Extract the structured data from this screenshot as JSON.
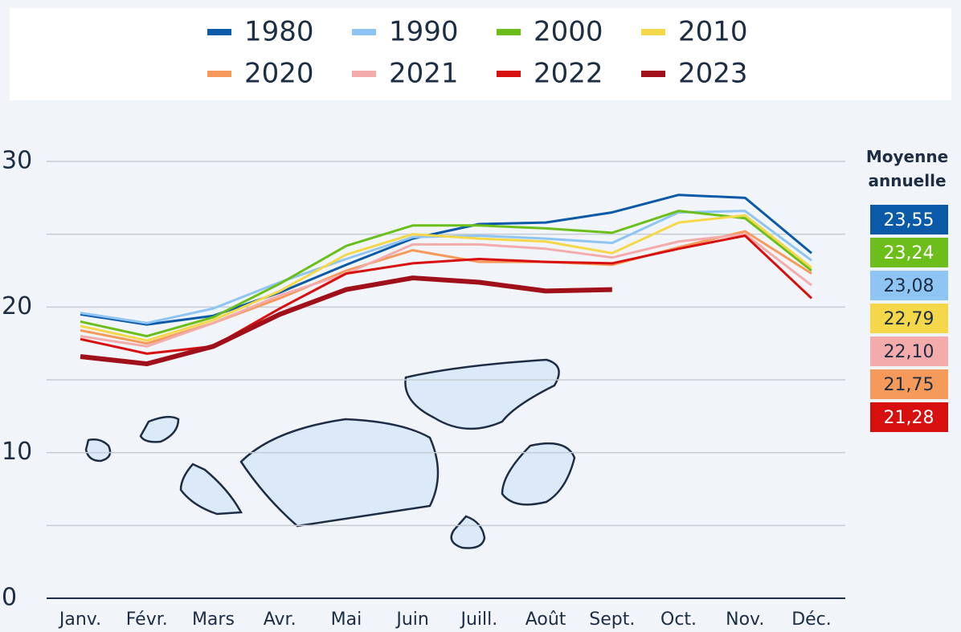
{
  "chart_data": {
    "type": "line",
    "categories": [
      "Janv.",
      "Févr.",
      "Mars",
      "Avr.",
      "Mai",
      "Juin",
      "Juill.",
      "Août",
      "Sept.",
      "Oct.",
      "Nov.",
      "Déc."
    ],
    "series": [
      {
        "name": "1980",
        "color": "#0b5aa8",
        "values": [
          19.5,
          18.8,
          19.4,
          21.0,
          22.9,
          24.7,
          25.7,
          25.8,
          26.5,
          27.7,
          27.5,
          23.7
        ]
      },
      {
        "name": "1990",
        "color": "#8ec5f2",
        "values": [
          19.6,
          18.9,
          19.9,
          21.7,
          23.3,
          24.8,
          24.9,
          24.7,
          24.4,
          26.5,
          26.6,
          23.2
        ]
      },
      {
        "name": "2000",
        "color": "#6cbf1a",
        "values": [
          19.0,
          18.0,
          19.3,
          21.6,
          24.2,
          25.6,
          25.6,
          25.4,
          25.1,
          26.6,
          26.1,
          22.5
        ]
      },
      {
        "name": "2010",
        "color": "#f5d84a",
        "values": [
          18.7,
          17.7,
          19.1,
          21.1,
          23.6,
          25.0,
          24.7,
          24.5,
          23.7,
          25.8,
          26.3,
          22.7
        ]
      },
      {
        "name": "2020",
        "color": "#f59a5a",
        "values": [
          18.4,
          17.5,
          18.9,
          20.6,
          22.5,
          23.9,
          23.1,
          23.1,
          22.9,
          24.1,
          25.2,
          22.3
        ]
      },
      {
        "name": "2021",
        "color": "#f4abab",
        "values": [
          18.0,
          17.3,
          18.9,
          20.8,
          22.3,
          24.3,
          24.3,
          24.0,
          23.4,
          24.5,
          25.0,
          21.5
        ]
      },
      {
        "name": "2022",
        "color": "#d7100f",
        "values": [
          17.8,
          16.8,
          17.3,
          19.9,
          22.3,
          23.0,
          23.3,
          23.1,
          23.0,
          24.0,
          24.9,
          20.6
        ]
      },
      {
        "name": "2023",
        "color": "#a0101a",
        "values": [
          16.6,
          16.1,
          17.3,
          19.5,
          21.2,
          22.0,
          21.7,
          21.1,
          21.2,
          null,
          null,
          null
        ]
      }
    ],
    "ylim": [
      0,
      30
    ],
    "yticks": [
      0,
      10,
      20,
      30
    ],
    "minor_yticks": [
      5,
      15,
      25
    ],
    "grid": true,
    "legend": "top",
    "annual_average": {
      "title": "Moyenne annuelle",
      "values": [
        23.55,
        23.24,
        23.08,
        22.79,
        22.1,
        21.75,
        21.28
      ],
      "value_labels": [
        "23,55",
        "23,24",
        "23,08",
        "22,79",
        "22,10",
        "21,75",
        "21,28"
      ],
      "colors": [
        "#0b5aa8",
        "#6cbf1a",
        "#8ec5f2",
        "#f5d84a",
        "#f4abab",
        "#f59a5a",
        "#d7100f"
      ]
    }
  }
}
